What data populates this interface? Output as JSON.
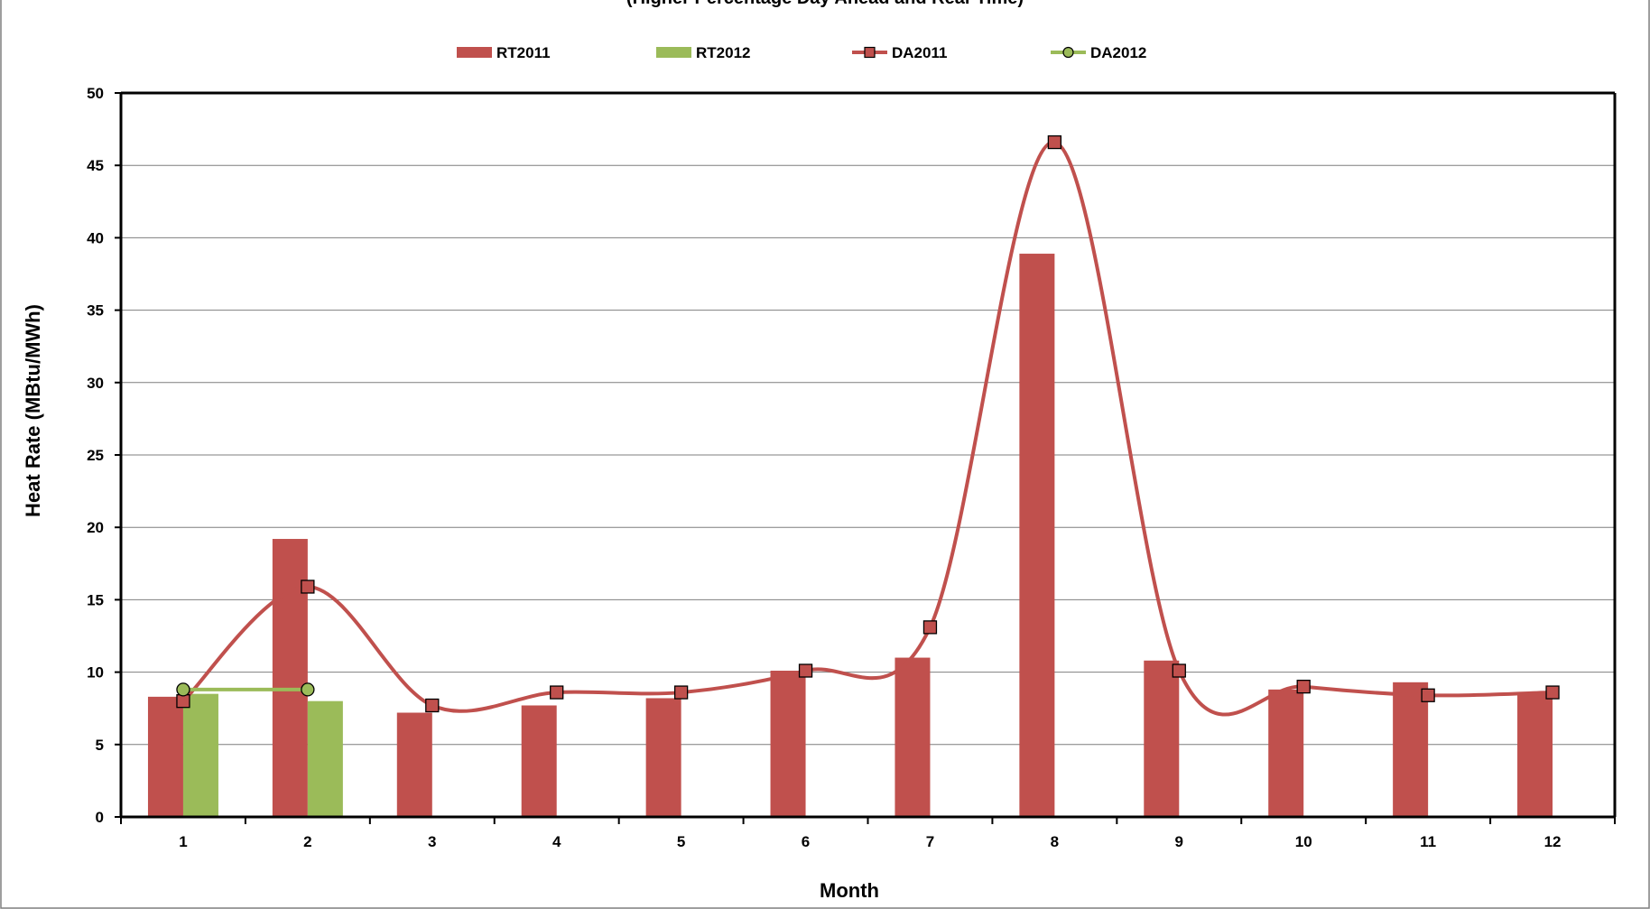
{
  "chart_data": {
    "type": "bar",
    "title": "(Higher Percentage Day Ahead and Real-Time)",
    "xlabel": "Month",
    "ylabel": "Heat Rate (MBtu/MWh)",
    "categories": [
      "1",
      "2",
      "3",
      "4",
      "5",
      "6",
      "7",
      "8",
      "9",
      "10",
      "11",
      "12"
    ],
    "ylim": [
      0,
      50
    ],
    "yticks": [
      0,
      5,
      10,
      15,
      20,
      25,
      30,
      35,
      40,
      45,
      50
    ],
    "grid": true,
    "legend_position": "top",
    "series": [
      {
        "name": "RT2011",
        "kind": "bar",
        "color": "#c0504d",
        "values": [
          8.3,
          19.2,
          7.2,
          7.7,
          8.2,
          10.1,
          11.0,
          38.9,
          10.8,
          8.8,
          9.3,
          8.6
        ]
      },
      {
        "name": "RT2012",
        "kind": "bar",
        "color": "#9bbb59",
        "values": [
          8.5,
          8.0,
          null,
          null,
          null,
          null,
          null,
          null,
          null,
          null,
          null,
          null
        ]
      },
      {
        "name": "DA2011",
        "kind": "line",
        "color": "#c0504d",
        "marker": "square",
        "values": [
          8.0,
          15.9,
          7.7,
          8.6,
          8.6,
          10.1,
          13.1,
          46.6,
          10.1,
          9.0,
          8.4,
          8.6
        ]
      },
      {
        "name": "DA2012",
        "kind": "line",
        "color": "#9bbb59",
        "marker": "circle",
        "values": [
          8.8,
          8.8,
          null,
          null,
          null,
          null,
          null,
          null,
          null,
          null,
          null,
          null
        ]
      }
    ]
  }
}
